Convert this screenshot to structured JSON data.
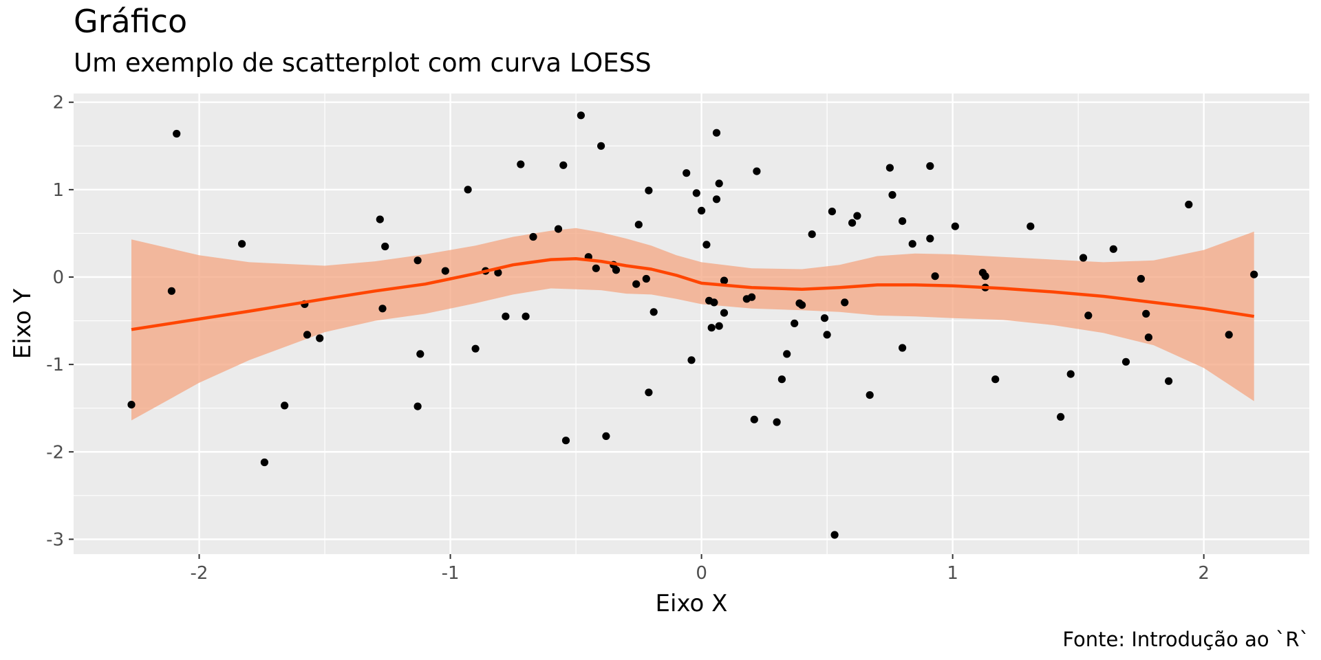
{
  "chart_data": {
    "type": "scatter",
    "title": "Gráfico",
    "subtitle": "Um exemplo de scatterplot com curva LOESS",
    "xlabel": "Eixo X",
    "ylabel": "Eixo Y",
    "caption": "Fonte: Introdução ao `R`",
    "xlim": [
      -2.5,
      2.42
    ],
    "ylim": [
      -3.17,
      2.1
    ],
    "x_ticks": [
      -2,
      -1,
      0,
      1,
      2
    ],
    "y_ticks": [
      2,
      1,
      0,
      -1,
      -2,
      -3
    ],
    "grid": true,
    "colors": {
      "panel_bg": "#ebebeb",
      "grid_major": "#ffffff",
      "points": "#000000",
      "smooth_line": "#ff4500",
      "ribbon": "#f4a582",
      "tick_text": "#4d4d4d"
    },
    "points": [
      {
        "x": -2.27,
        "y": -1.46
      },
      {
        "x": -2.11,
        "y": -0.16
      },
      {
        "x": -2.09,
        "y": 1.64
      },
      {
        "x": -1.83,
        "y": 0.38
      },
      {
        "x": -1.74,
        "y": -2.12
      },
      {
        "x": -1.66,
        "y": -1.47
      },
      {
        "x": -1.58,
        "y": -0.31
      },
      {
        "x": -1.57,
        "y": -0.66
      },
      {
        "x": -1.52,
        "y": -0.7
      },
      {
        "x": -1.28,
        "y": 0.66
      },
      {
        "x": -1.27,
        "y": -0.36
      },
      {
        "x": -1.26,
        "y": 0.35
      },
      {
        "x": -1.13,
        "y": 0.19
      },
      {
        "x": -1.13,
        "y": -1.48
      },
      {
        "x": -1.12,
        "y": -0.88
      },
      {
        "x": -1.02,
        "y": 0.07
      },
      {
        "x": -0.93,
        "y": 1.0
      },
      {
        "x": -0.9,
        "y": -0.82
      },
      {
        "x": -0.86,
        "y": 0.07
      },
      {
        "x": -0.81,
        "y": 0.05
      },
      {
        "x": -0.78,
        "y": -0.45
      },
      {
        "x": -0.72,
        "y": 1.29
      },
      {
        "x": -0.7,
        "y": -0.45
      },
      {
        "x": -0.67,
        "y": 0.46
      },
      {
        "x": -0.57,
        "y": 0.55
      },
      {
        "x": -0.55,
        "y": 1.28
      },
      {
        "x": -0.54,
        "y": -1.87
      },
      {
        "x": -0.48,
        "y": 1.85
      },
      {
        "x": -0.45,
        "y": 0.23
      },
      {
        "x": -0.42,
        "y": 0.1
      },
      {
        "x": -0.4,
        "y": 1.5
      },
      {
        "x": -0.38,
        "y": -1.82
      },
      {
        "x": -0.35,
        "y": 0.14
      },
      {
        "x": -0.34,
        "y": 0.08
      },
      {
        "x": -0.26,
        "y": -0.08
      },
      {
        "x": -0.25,
        "y": 0.6
      },
      {
        "x": -0.22,
        "y": -0.02
      },
      {
        "x": -0.21,
        "y": 0.99
      },
      {
        "x": -0.21,
        "y": -1.32
      },
      {
        "x": -0.19,
        "y": -0.4
      },
      {
        "x": -0.06,
        "y": 1.19
      },
      {
        "x": -0.04,
        "y": -0.95
      },
      {
        "x": -0.02,
        "y": 0.96
      },
      {
        "x": 0.0,
        "y": 0.76
      },
      {
        "x": 0.02,
        "y": 0.37
      },
      {
        "x": 0.03,
        "y": -0.27
      },
      {
        "x": 0.04,
        "y": -0.58
      },
      {
        "x": 0.05,
        "y": -0.29
      },
      {
        "x": 0.06,
        "y": 0.89
      },
      {
        "x": 0.06,
        "y": 1.65
      },
      {
        "x": 0.07,
        "y": 1.07
      },
      {
        "x": 0.07,
        "y": -0.56
      },
      {
        "x": 0.09,
        "y": -0.04
      },
      {
        "x": 0.09,
        "y": -0.41
      },
      {
        "x": 0.18,
        "y": -0.25
      },
      {
        "x": 0.2,
        "y": -0.23
      },
      {
        "x": 0.21,
        "y": -1.63
      },
      {
        "x": 0.22,
        "y": 1.21
      },
      {
        "x": 0.3,
        "y": -1.66
      },
      {
        "x": 0.32,
        "y": -1.17
      },
      {
        "x": 0.34,
        "y": -0.88
      },
      {
        "x": 0.37,
        "y": -0.53
      },
      {
        "x": 0.39,
        "y": -0.3
      },
      {
        "x": 0.4,
        "y": -0.32
      },
      {
        "x": 0.44,
        "y": 0.49
      },
      {
        "x": 0.49,
        "y": -0.47
      },
      {
        "x": 0.5,
        "y": -0.66
      },
      {
        "x": 0.52,
        "y": 0.75
      },
      {
        "x": 0.53,
        "y": -2.95
      },
      {
        "x": 0.57,
        "y": -0.29
      },
      {
        "x": 0.6,
        "y": 0.62
      },
      {
        "x": 0.62,
        "y": 0.7
      },
      {
        "x": 0.67,
        "y": -1.35
      },
      {
        "x": 0.75,
        "y": 1.25
      },
      {
        "x": 0.76,
        "y": 0.94
      },
      {
        "x": 0.8,
        "y": 0.64
      },
      {
        "x": 0.8,
        "y": -0.81
      },
      {
        "x": 0.84,
        "y": 0.38
      },
      {
        "x": 0.91,
        "y": 1.27
      },
      {
        "x": 0.91,
        "y": 0.44
      },
      {
        "x": 0.93,
        "y": 0.01
      },
      {
        "x": 1.01,
        "y": 0.58
      },
      {
        "x": 1.12,
        "y": 0.05
      },
      {
        "x": 1.13,
        "y": -0.12
      },
      {
        "x": 1.13,
        "y": 0.01
      },
      {
        "x": 1.17,
        "y": -1.17
      },
      {
        "x": 1.31,
        "y": 0.58
      },
      {
        "x": 1.43,
        "y": -1.6
      },
      {
        "x": 1.47,
        "y": -1.11
      },
      {
        "x": 1.52,
        "y": 0.22
      },
      {
        "x": 1.54,
        "y": -0.44
      },
      {
        "x": 1.64,
        "y": 0.32
      },
      {
        "x": 1.69,
        "y": -0.97
      },
      {
        "x": 1.75,
        "y": -0.02
      },
      {
        "x": 1.77,
        "y": -0.42
      },
      {
        "x": 1.78,
        "y": -0.69
      },
      {
        "x": 1.86,
        "y": -1.19
      },
      {
        "x": 1.94,
        "y": 0.83
      },
      {
        "x": 2.1,
        "y": -0.66
      },
      {
        "x": 2.2,
        "y": 0.03
      }
    ],
    "smooth": {
      "x": [
        -2.27,
        -2.0,
        -1.8,
        -1.5,
        -1.3,
        -1.1,
        -0.9,
        -0.75,
        -0.6,
        -0.5,
        -0.4,
        -0.3,
        -0.2,
        -0.1,
        0.0,
        0.2,
        0.4,
        0.55,
        0.7,
        0.85,
        1.0,
        1.2,
        1.4,
        1.6,
        1.8,
        2.0,
        2.2
      ],
      "y": [
        -0.6,
        -0.48,
        -0.39,
        -0.25,
        -0.16,
        -0.08,
        0.04,
        0.14,
        0.2,
        0.21,
        0.18,
        0.13,
        0.09,
        0.02,
        -0.07,
        -0.12,
        -0.14,
        -0.12,
        -0.09,
        -0.09,
        -0.1,
        -0.13,
        -0.17,
        -0.22,
        -0.29,
        -0.36,
        -0.45
      ],
      "upper": [
        0.43,
        0.25,
        0.17,
        0.13,
        0.18,
        0.26,
        0.36,
        0.46,
        0.53,
        0.56,
        0.51,
        0.44,
        0.36,
        0.25,
        0.17,
        0.1,
        0.09,
        0.14,
        0.24,
        0.27,
        0.26,
        0.23,
        0.2,
        0.17,
        0.19,
        0.31,
        0.52
      ],
      "lower": [
        -1.64,
        -1.21,
        -0.95,
        -0.63,
        -0.5,
        -0.42,
        -0.3,
        -0.2,
        -0.13,
        -0.14,
        -0.15,
        -0.19,
        -0.2,
        -0.25,
        -0.31,
        -0.36,
        -0.38,
        -0.4,
        -0.44,
        -0.45,
        -0.47,
        -0.49,
        -0.55,
        -0.64,
        -0.78,
        -1.04,
        -1.42
      ]
    }
  }
}
